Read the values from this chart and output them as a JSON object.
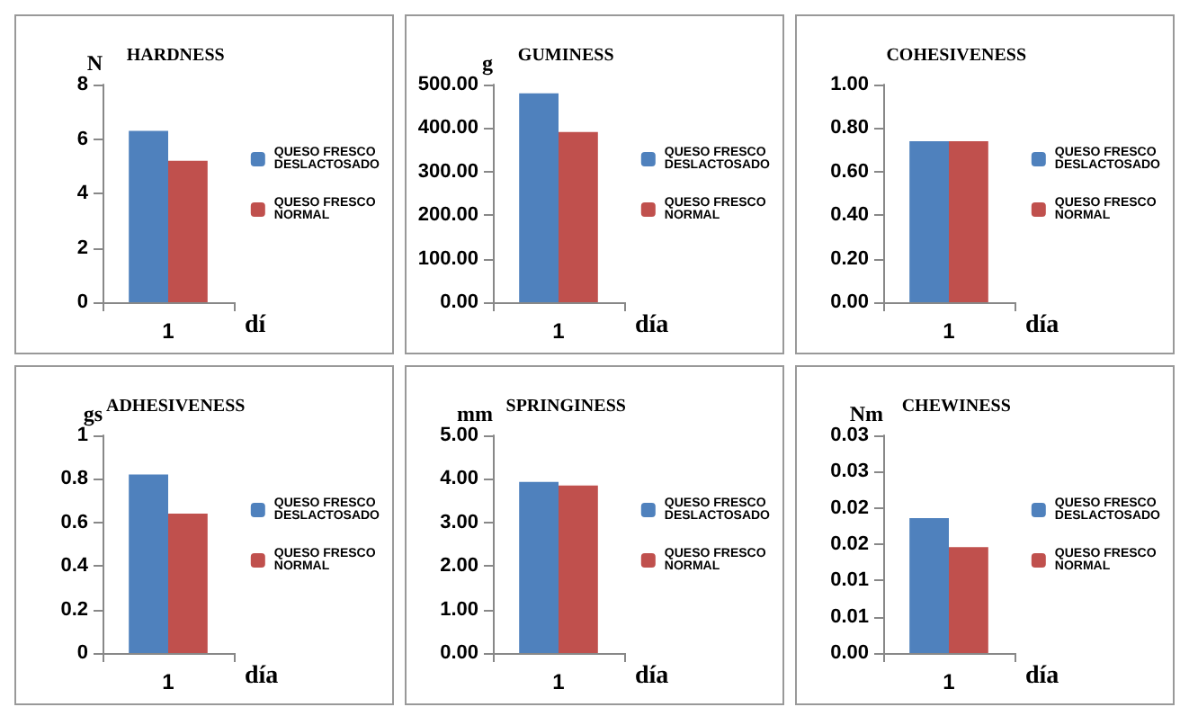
{
  "chart_data": [
    {
      "type": "bar",
      "title": "HARDNESS",
      "ylabel": "N",
      "xlabel": "dí",
      "categories": [
        "1"
      ],
      "legend": "right",
      "ylim": [
        0,
        8
      ],
      "yticks": [
        0,
        2,
        4,
        6,
        8
      ],
      "series": [
        {
          "name": "QUESO FRESCO DESLACTOSADO",
          "color": "#4f81bd",
          "values": [
            6.3
          ]
        },
        {
          "name": "QUESO FRESCO NORMAL",
          "color": "#c0504d",
          "values": [
            5.2
          ]
        }
      ]
    },
    {
      "type": "bar",
      "title": "GUMINESS",
      "ylabel": "g",
      "xlabel": "día",
      "categories": [
        "1"
      ],
      "legend": "right",
      "ylim": [
        0,
        500
      ],
      "yticks": [
        {
          "value": 0,
          "label": "0.00"
        },
        {
          "value": 100,
          "label": "100.00"
        },
        {
          "value": 200,
          "label": "200.00"
        },
        {
          "value": 300,
          "label": "300.00"
        },
        {
          "value": 400,
          "label": "400.00"
        },
        {
          "value": 500,
          "label": "500.00"
        }
      ],
      "series": [
        {
          "name": "QUESO FRESCO DESLACTOSADO",
          "color": "#4f81bd",
          "values": [
            480
          ]
        },
        {
          "name": "QUESO FRESCO NORMAL",
          "color": "#c0504d",
          "values": [
            391
          ]
        }
      ]
    },
    {
      "type": "bar",
      "title": "COHESIVENESS",
      "xlabel": "día",
      "categories": [
        "1"
      ],
      "legend": "right",
      "ylim": [
        0,
        1
      ],
      "yticks": [
        {
          "value": 0,
          "label": "0.00"
        },
        {
          "value": 0.2,
          "label": "0.20"
        },
        {
          "value": 0.4,
          "label": "0.40"
        },
        {
          "value": 0.6,
          "label": "0.60"
        },
        {
          "value": 0.8,
          "label": "0.80"
        },
        {
          "value": 1,
          "label": "1.00"
        }
      ],
      "series": [
        {
          "name": "QUESO FRESCO DESLACTOSADO",
          "color": "#4f81bd",
          "values": [
            0.74
          ]
        },
        {
          "name": "QUESO FRESCO NORMAL",
          "color": "#c0504d",
          "values": [
            0.74
          ]
        }
      ]
    },
    {
      "type": "bar",
      "title": "ADHESIVENESS",
      "ylabel": "gs",
      "xlabel": "día",
      "categories": [
        "1"
      ],
      "legend": "right",
      "ylim": [
        0,
        1
      ],
      "yticks": [
        0,
        0.2,
        0.4,
        0.6,
        0.8,
        1
      ],
      "series": [
        {
          "name": "QUESO FRESCO DESLACTOSADO",
          "color": "#4f81bd",
          "values": [
            0.82
          ]
        },
        {
          "name": "QUESO FRESCO NORMAL",
          "color": "#c0504d",
          "values": [
            0.64
          ]
        }
      ]
    },
    {
      "type": "bar",
      "title": "SPRINGINESS",
      "ylabel": "mm",
      "xlabel": "día",
      "categories": [
        "1"
      ],
      "legend": "right",
      "ylim": [
        0,
        5
      ],
      "yticks": [
        {
          "value": 0,
          "label": "0.00"
        },
        {
          "value": 1,
          "label": "1.00"
        },
        {
          "value": 2,
          "label": "2.00"
        },
        {
          "value": 3,
          "label": "3.00"
        },
        {
          "value": 4,
          "label": "4.00"
        },
        {
          "value": 5,
          "label": "5.00"
        }
      ],
      "series": [
        {
          "name": "QUESO FRESCO DESLACTOSADO",
          "color": "#4f81bd",
          "values": [
            3.93
          ]
        },
        {
          "name": "QUESO FRESCO NORMAL",
          "color": "#c0504d",
          "values": [
            3.85
          ]
        }
      ]
    },
    {
      "type": "bar",
      "title": "CHEWINESS",
      "ylabel": "Nm",
      "xlabel": "día",
      "categories": [
        "1"
      ],
      "legend": "right",
      "ylim": [
        0,
        0.03
      ],
      "yticks": [
        {
          "value": 0,
          "label": "0.00"
        },
        {
          "value": 0.005,
          "label": "0.01"
        },
        {
          "value": 0.01,
          "label": "0.01"
        },
        {
          "value": 0.015,
          "label": "0.02"
        },
        {
          "value": 0.02,
          "label": "0.02"
        },
        {
          "value": 0.025,
          "label": "0.03"
        },
        {
          "value": 0.03,
          "label": "0.03"
        }
      ],
      "series": [
        {
          "name": "QUESO FRESCO DESLACTOSADO",
          "color": "#4f81bd",
          "values": [
            0.0186
          ]
        },
        {
          "name": "QUESO FRESCO NORMAL",
          "color": "#c0504d",
          "values": [
            0.0146
          ]
        }
      ]
    }
  ]
}
